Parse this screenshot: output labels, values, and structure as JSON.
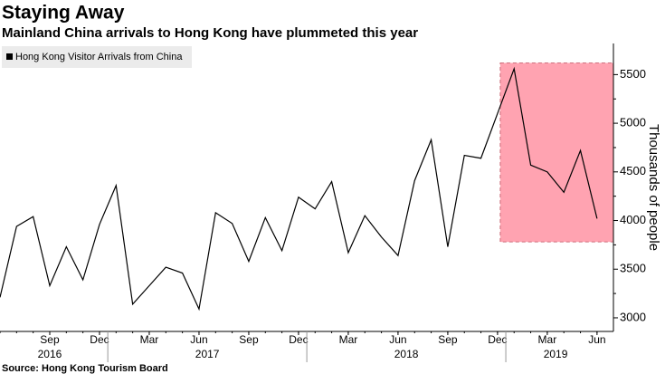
{
  "chart_data": {
    "type": "line",
    "title": "Staying Away",
    "subtitle": "Mainland China arrivals to Hong Kong have plummeted this year",
    "source": "Source: Hong Kong Tourism Board",
    "y_axis_label": "Thousands of people",
    "x": [
      "2016-06",
      "2016-07",
      "2016-08",
      "2016-09",
      "2016-10",
      "2016-11",
      "2016-12",
      "2017-01",
      "2017-02",
      "2017-03",
      "2017-04",
      "2017-05",
      "2017-06",
      "2017-07",
      "2017-08",
      "2017-09",
      "2017-10",
      "2017-11",
      "2017-12",
      "2018-01",
      "2018-02",
      "2018-03",
      "2018-04",
      "2018-05",
      "2018-06",
      "2018-07",
      "2018-08",
      "2018-09",
      "2018-10",
      "2018-11",
      "2018-12",
      "2019-01",
      "2019-02",
      "2019-03",
      "2019-04",
      "2019-05",
      "2019-06"
    ],
    "series": [
      {
        "name": "Hong Kong Visitor Arrivals from China",
        "color": "#000000",
        "values": [
          3210,
          3940,
          4040,
          3330,
          3730,
          3390,
          3960,
          4360,
          3140,
          3330,
          3520,
          3460,
          3090,
          4080,
          3970,
          3580,
          4030,
          3690,
          4240,
          4120,
          4400,
          3670,
          4050,
          3830,
          3640,
          4410,
          4830,
          3730,
          4670,
          4640,
          5100,
          5560,
          4570,
          4500,
          4290,
          4720,
          4020
        ]
      }
    ],
    "xticks": [
      {
        "value": "2016-09",
        "label": "Sep"
      },
      {
        "value": "2016-12",
        "label": "Dec"
      },
      {
        "value": "2017-03",
        "label": "Mar"
      },
      {
        "value": "2017-06",
        "label": "Jun"
      },
      {
        "value": "2017-09",
        "label": "Sep"
      },
      {
        "value": "2017-12",
        "label": "Dec"
      },
      {
        "value": "2018-03",
        "label": "Mar"
      },
      {
        "value": "2018-06",
        "label": "Jun"
      },
      {
        "value": "2018-09",
        "label": "Sep"
      },
      {
        "value": "2018-12",
        "label": "Dec"
      },
      {
        "value": "2019-03",
        "label": "Mar"
      },
      {
        "value": "2019-06",
        "label": "Jun"
      }
    ],
    "x_groups": [
      "2016",
      "2017",
      "2018",
      "2019"
    ],
    "ylim": [
      2860,
      5820
    ],
    "yticks": [
      3000,
      3500,
      4000,
      4500,
      5000,
      5500
    ],
    "highlight": {
      "start": "2018-12",
      "y_range": [
        3780,
        5620
      ],
      "color": "#ffa3b1"
    },
    "legend": "top-left"
  }
}
